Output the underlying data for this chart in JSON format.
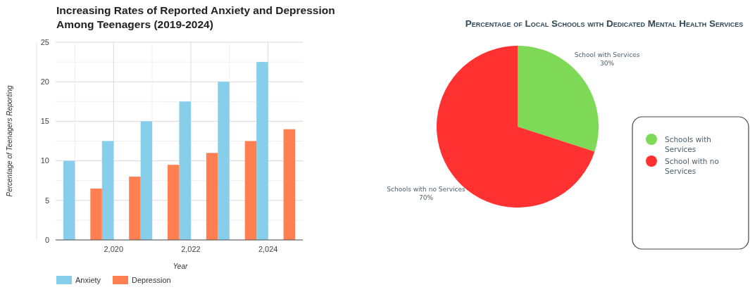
{
  "chart_data": [
    {
      "type": "bar",
      "title": "Increasing Rates of Reported Anxiety and Depression\nAmong Teenagers (2019-2024)",
      "xlabel": "Year",
      "ylabel": "Percentage of Teenagers Reporting",
      "series": [
        {
          "name": "Anxiety",
          "color": "#87ceeb",
          "x": [
            2018.85,
            2019.85,
            2020.85,
            2021.85,
            2022.85,
            2023.85
          ],
          "values": [
            10,
            12.5,
            15,
            17.5,
            20,
            22.5
          ]
        },
        {
          "name": "Depression",
          "color": "#ff7f50",
          "x": [
            2019.55,
            2020.55,
            2021.55,
            2022.55,
            2023.55,
            2024.55
          ],
          "values": [
            6.5,
            8,
            9.5,
            11,
            12.5,
            14
          ]
        }
      ],
      "xlim": [
        2018.5,
        2024.9
      ],
      "xticks": [
        {
          "value": 2019,
          "label": null
        },
        {
          "value": 2020,
          "label": "2,020"
        },
        {
          "value": 2021,
          "label": null
        },
        {
          "value": 2022,
          "label": "2,022"
        },
        {
          "value": 2023,
          "label": null
        },
        {
          "value": 2024,
          "label": "2,024"
        }
      ],
      "ylim": [
        0,
        25
      ],
      "yticks": [
        0,
        {
          "value": 2.5,
          "label": null
        },
        5,
        {
          "value": 7.5,
          "label": null
        },
        10,
        {
          "value": 12.5,
          "label": null
        },
        15,
        {
          "value": 17.5,
          "label": null
        },
        20,
        {
          "value": 22.5,
          "label": null
        },
        25
      ],
      "grid": true,
      "legend": "bottom"
    },
    {
      "type": "pie",
      "title": "Percentage of Local Schools with Dedicated Mental Health Services",
      "categories": [
        "Schools with Services",
        "School with no Services"
      ],
      "values": [
        30,
        70
      ],
      "colors": [
        "#7ed957",
        "#ff3131"
      ],
      "value_labels": [
        "30%",
        "70%"
      ],
      "annotations": [
        "School with Services",
        "Schools with no Services"
      ],
      "legend": "right"
    }
  ]
}
